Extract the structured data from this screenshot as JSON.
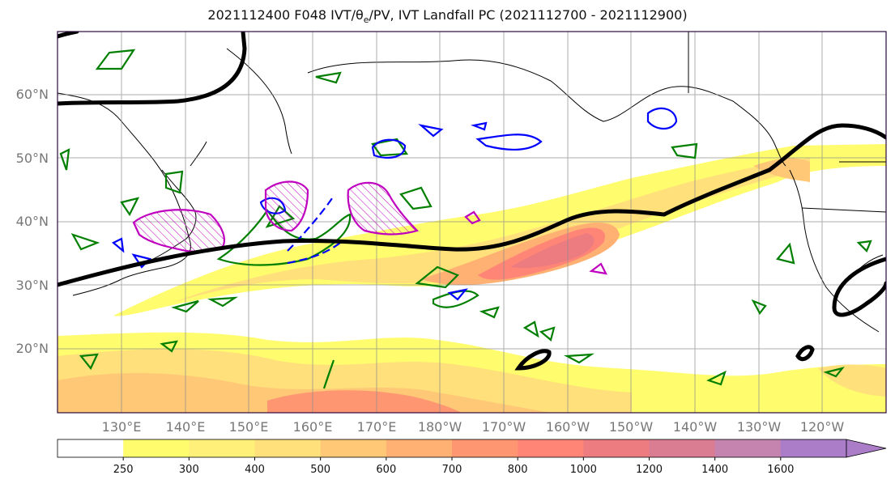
{
  "title": "2021112400 F048 IVT/θe/PV, IVT Landfall PC (2021112700 - 2021112900)",
  "map": {
    "type": "map",
    "projection": "PlateCarree",
    "extent": {
      "lon": [
        120,
        250
      ],
      "lat": [
        10,
        70
      ]
    },
    "grid": true,
    "lat_ticks": [
      {
        "value": 20,
        "label": "20°N"
      },
      {
        "value": 30,
        "label": "30°N"
      },
      {
        "value": 40,
        "label": "40°N"
      },
      {
        "value": 50,
        "label": "50°N"
      },
      {
        "value": 60,
        "label": "60°N"
      }
    ],
    "lon_ticks": [
      {
        "value": 130,
        "label": "130°E"
      },
      {
        "value": 140,
        "label": "140°E"
      },
      {
        "value": 150,
        "label": "150°E"
      },
      {
        "value": 160,
        "label": "160°E"
      },
      {
        "value": 170,
        "label": "170°E"
      },
      {
        "value": 180,
        "label": "180°W"
      },
      {
        "value": 190,
        "label": "170°W"
      },
      {
        "value": 200,
        "label": "160°W"
      },
      {
        "value": 210,
        "label": "150°W"
      },
      {
        "value": 220,
        "label": "140°W"
      },
      {
        "value": 230,
        "label": "130°W"
      },
      {
        "value": 240,
        "label": "120°W"
      }
    ]
  },
  "colorbar": {
    "levels": [
      "250",
      "300",
      "400",
      "500",
      "600",
      "700",
      "800",
      "1000",
      "1200",
      "1400",
      "1600"
    ],
    "colors": [
      "#ffffff",
      "#fffd6e",
      "#fff07a",
      "#ffe07a",
      "#ffc877",
      "#ffb073",
      "#ff9672",
      "#ff8677",
      "#ed7c80",
      "#da7c92",
      "#c584b0",
      "#ab7cc8"
    ],
    "extend": "max"
  },
  "colors": {
    "ivt_landfall_pc": "#000000",
    "theta_e": "#007f00",
    "pv": "#0000ff",
    "magenta_contour": "#bf00bf",
    "frame": "#2b0a3d"
  }
}
